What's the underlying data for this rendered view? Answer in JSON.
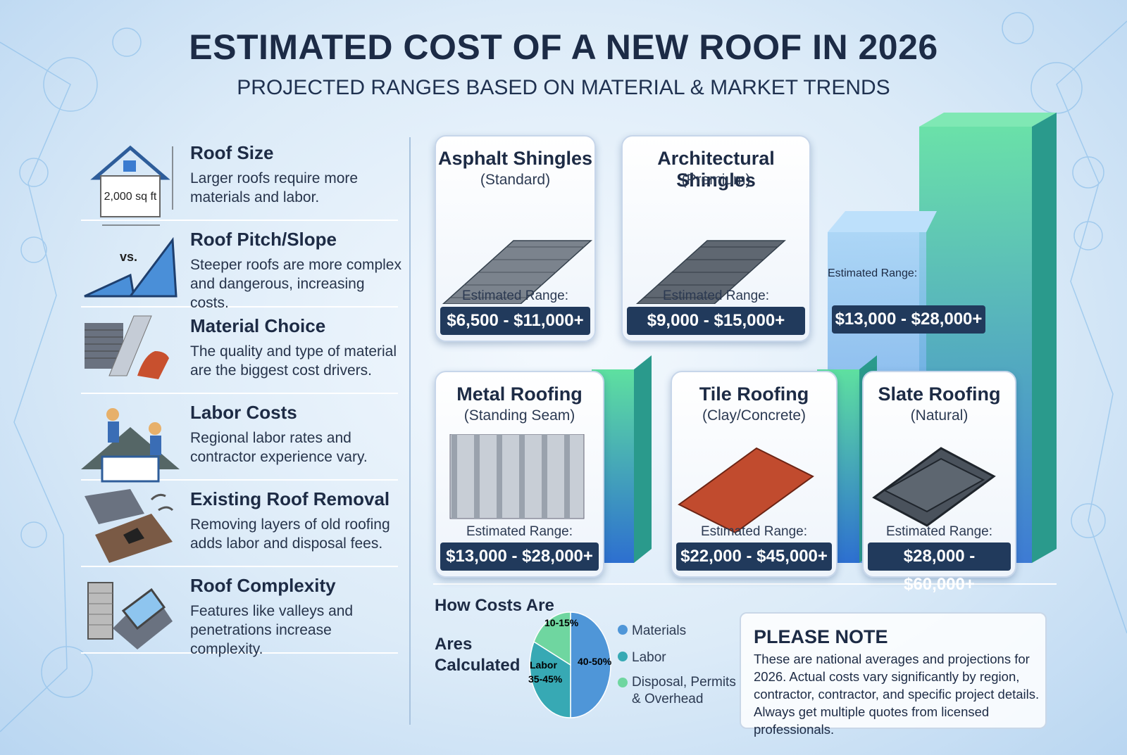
{
  "header": {
    "title": "ESTIMATED COST OF A NEW ROOF IN 2026",
    "subtitle": "PROJECTED RANGES BASED ON MATERIAL & MARKET TRENDS"
  },
  "factors": [
    {
      "title": "Roof Size",
      "text": "Larger roofs require more materials and labor.",
      "icon_label": "2,000 sq ft"
    },
    {
      "title": "Roof Pitch/Slope",
      "text": "Steeper roofs are more complex and dangerous, increasing costs.",
      "icon_label": "vs."
    },
    {
      "title": "Material Choice",
      "text": "The quality and type of material are the biggest cost drivers."
    },
    {
      "title": "Labor Costs",
      "text": "Regional labor rates and contractor experience vary."
    },
    {
      "title": "Existing Roof Removal",
      "text": "Removing layers of old roofing adds labor and disposal fees."
    },
    {
      "title": "Roof Complexity",
      "text": "Features like valleys and penetrations increase complexity."
    }
  ],
  "materials": [
    {
      "name": "Asphalt Shingles",
      "sub": "(Standard)",
      "range_label": "Estimated Range:",
      "price": "$6,500 - $11,000+"
    },
    {
      "name": "Architectural Shingles",
      "sub": "(Premium)",
      "range_label": "Estimated Range:",
      "price": "$9,000 - $15,000+"
    },
    {
      "range_label": "Estimated Range:",
      "price": "$13,000 - $28,000+"
    },
    {
      "name": "Metal Roofing",
      "sub": "(Standing Seam)",
      "range_label": "Estimated Range:",
      "price": "$13,000 - $28,000+"
    },
    {
      "name": "Tile Roofing",
      "sub": "(Clay/Concrete)",
      "range_label": "Estimated Range:",
      "price": "$22,000 - $45,000+"
    },
    {
      "name": "Slate Roofing",
      "sub": "(Natural)",
      "range_label": "Estimated Range:",
      "price": "$28,000 - $60,000+"
    }
  ],
  "cost_breakdown": {
    "title_line1": "How Costs Are",
    "title_line2": "Ares",
    "title_line3": "Calculated",
    "pie_labels": {
      "materials": "40-50%",
      "labor_name": "Labor",
      "labor": "35-45%",
      "disposal": "10-15%"
    },
    "legend": [
      "Materials",
      "Labor",
      "Disposal, Permits & Overhead"
    ]
  },
  "note": {
    "title": "PLEASE NOTE",
    "text": "These are national averages and projections for 2026. Actual costs vary significantly by region, contractor, contractor, and specific project details. Always get multiple quotes from licensed professionals."
  }
}
